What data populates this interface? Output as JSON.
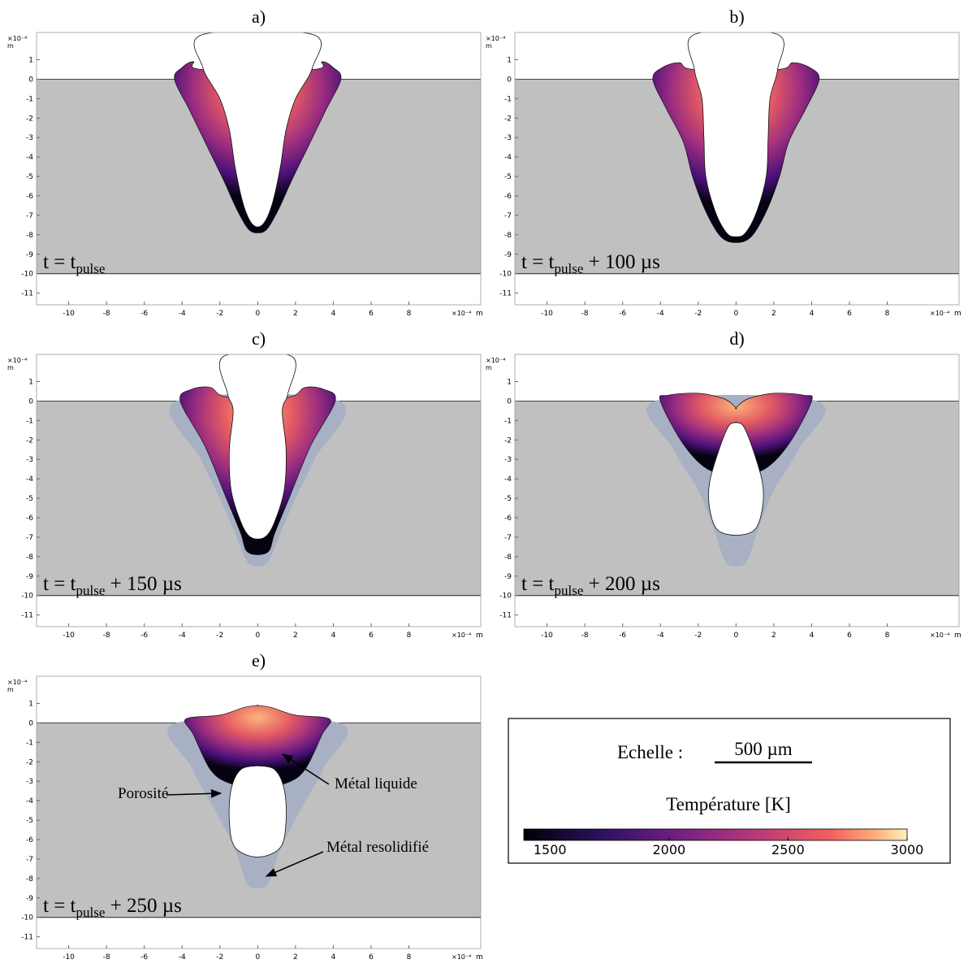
{
  "panels": [
    {
      "label": "a)",
      "time": {
        "main": "t = t",
        "sub": "pulse"
      }
    },
    {
      "label": "b)",
      "time": {
        "main": "t = t",
        "sub": "pulse",
        "rest": " + 100 µs"
      }
    },
    {
      "label": "c)",
      "time": {
        "main": "t = t",
        "sub": "pulse",
        "rest": " + 150 µs"
      }
    },
    {
      "label": "d)",
      "time": {
        "main": "t = t",
        "sub": "pulse",
        "rest": " + 200 µs"
      }
    },
    {
      "label": "e)",
      "time": {
        "main": "t = t",
        "sub": "pulse",
        "rest": " + 250 µs"
      }
    }
  ],
  "axes": {
    "xlim": [
      -11.7,
      11.8
    ],
    "ylim": [
      -11.6,
      2.4
    ],
    "xticks": [
      -10,
      -8,
      -6,
      -4,
      -2,
      0,
      2,
      4,
      6,
      8
    ],
    "yticks": [
      1,
      0,
      -1,
      -2,
      -3,
      -4,
      -5,
      -6,
      -7,
      -8,
      -9,
      -10,
      -11
    ],
    "exponent": "×10⁻⁴",
    "unit": "m"
  },
  "annotations": [
    "Métal liquide",
    "Porosité",
    "Métal resolidifié"
  ],
  "legend": {
    "scale_label": "Echelle :",
    "scale_value": "500 µm",
    "colorbar_title": "Température [K]",
    "clim": [
      1390,
      3000
    ],
    "ticks": [
      1500,
      2000,
      2500,
      3000
    ]
  }
}
